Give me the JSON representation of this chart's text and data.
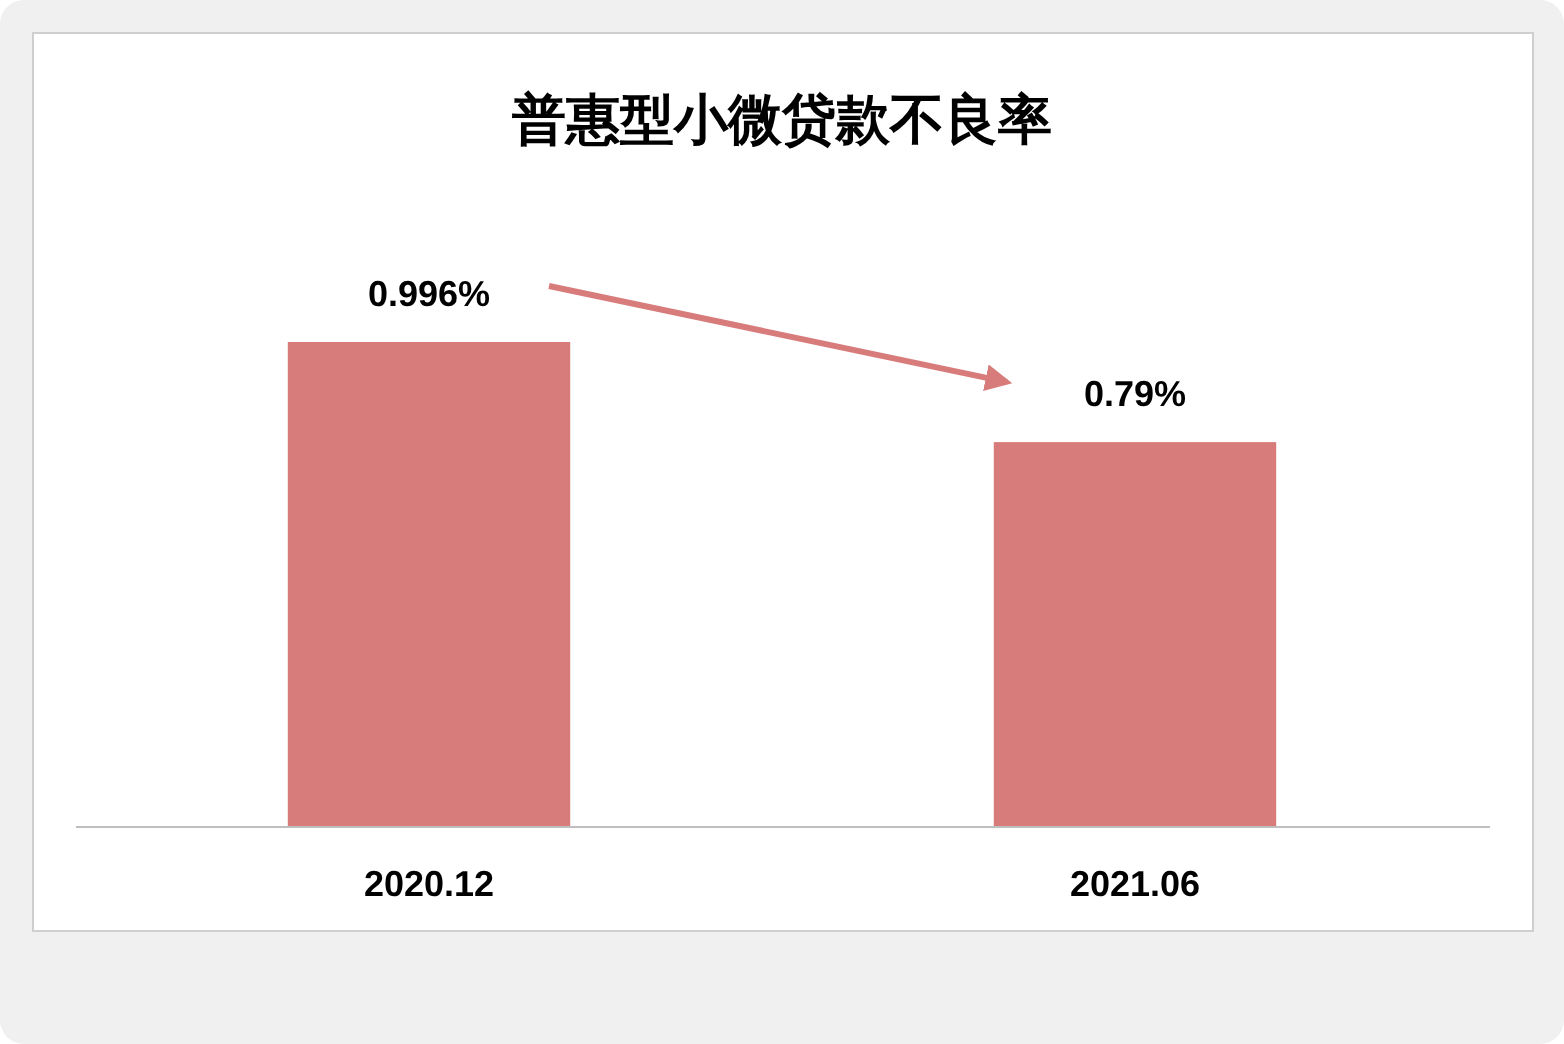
{
  "chart_data": {
    "type": "bar",
    "title": "普惠型小微贷款不良率",
    "categories": [
      "2020.12",
      "2021.06"
    ],
    "values": [
      0.996,
      0.79
    ],
    "color": "#d87c7b",
    "value_labels": [
      "0.996%",
      "0.79%"
    ]
  }
}
